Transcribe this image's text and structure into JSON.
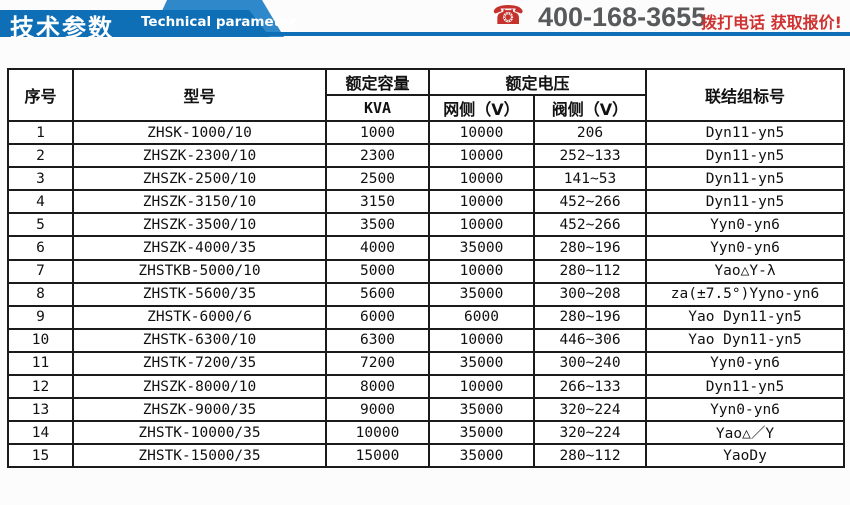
{
  "banner": {
    "title_cn": "技术参数",
    "title_en": "Technical parameter",
    "phone_icon": "phone-icon",
    "phone": "400-168-3655",
    "cta": "拨打电话 获取报价!",
    "colors": {
      "ribbon_blue": "#0e6fb6",
      "band_blue": "#2f88ca",
      "phone_gray": "#58595b",
      "cta_red": "#cf3230",
      "phone_icon_red": "#c5312b"
    }
  },
  "table": {
    "headers": {
      "col_no": "序号",
      "col_model": "型号",
      "col_capacity": "额定容量",
      "col_capacity_unit": "KVA",
      "col_voltage": "额定电压",
      "col_grid_side": "网侧（V）",
      "col_valve_side": "阀侧（V）",
      "col_connection": "联结组标号"
    },
    "rows": [
      [
        "1",
        "ZHSK-1000/10",
        "1000",
        "10000",
        "206",
        "Dyn11-yn5"
      ],
      [
        "2",
        "ZHSZK-2300/10",
        "2300",
        "10000",
        "252~133",
        "Dyn11-yn5"
      ],
      [
        "3",
        "ZHSZK-2500/10",
        "2500",
        "10000",
        "141~53",
        "Dyn11-yn5"
      ],
      [
        "4",
        "ZHSZK-3150/10",
        "3150",
        "10000",
        "452~266",
        "Dyn11-yn5"
      ],
      [
        "5",
        "ZHSZK-3500/10",
        "3500",
        "10000",
        "452~266",
        "Yyn0-yn6"
      ],
      [
        "6",
        "ZHSZK-4000/35",
        "4000",
        "35000",
        "280~196",
        "Yyn0-yn6"
      ],
      [
        "7",
        "ZHSTKB-5000/10",
        "5000",
        "10000",
        "280~112",
        "Yao△Y-λ"
      ],
      [
        "8",
        "ZHSTK-5600/35",
        "5600",
        "35000",
        "300~208",
        "za(±7.5°)Yyno-yn6"
      ],
      [
        "9",
        "ZHSTK-6000/6",
        "6000",
        "6000",
        "280~196",
        "Yao Dyn11-yn5"
      ],
      [
        "10",
        "ZHSTK-6300/10",
        "6300",
        "10000",
        "446~306",
        "Yao Dyn11-yn5"
      ],
      [
        "11",
        "ZHSTK-7200/35",
        "7200",
        "35000",
        "300~240",
        "Yyn0-yn6"
      ],
      [
        "12",
        "ZHSZK-8000/10",
        "8000",
        "10000",
        "266~133",
        "Dyn11-yn5"
      ],
      [
        "13",
        "ZHSZK-9000/35",
        "9000",
        "35000",
        "320~224",
        "Yyn0-yn6"
      ],
      [
        "14",
        "ZHSTK-10000/35",
        "10000",
        "35000",
        "320~224",
        "Yao△／Y"
      ],
      [
        "15",
        "ZHSTK-15000/35",
        "15000",
        "35000",
        "280~112",
        "YaoDy"
      ]
    ]
  }
}
